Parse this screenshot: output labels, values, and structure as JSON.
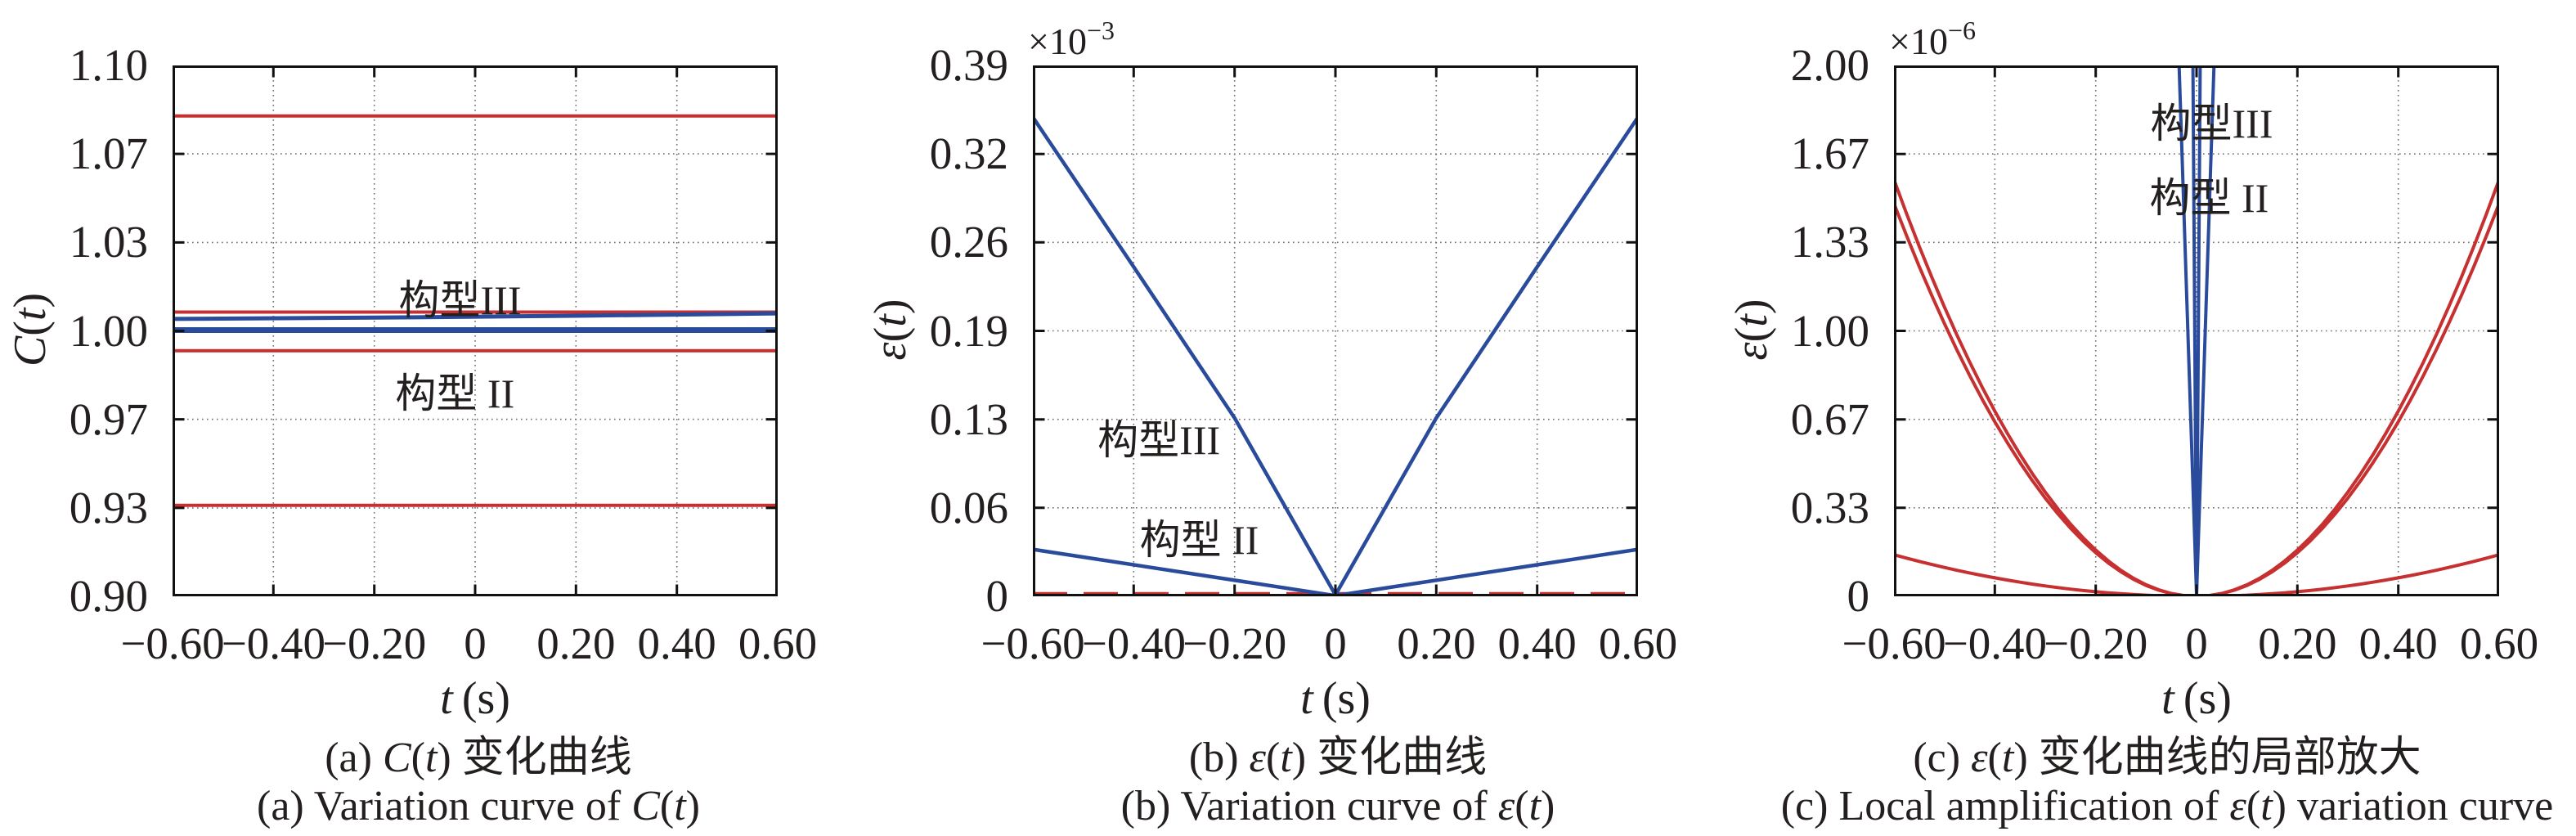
{
  "figure": {
    "background": "#ffffff",
    "text_color": "#241f1f",
    "grid_color": "#6e6e6e",
    "axis_color": "#111111"
  },
  "colors": {
    "red": "#c63030",
    "blue": "#2a4b9c"
  },
  "chart_data": [
    {
      "type": "line",
      "id": "a",
      "xlabel": "t (s)",
      "ylabel": "C(t)",
      "caption_cn": "(a) C(t) 变化曲线",
      "caption_en": "(a) Variation curve of C(t)",
      "xlim": [
        -0.6,
        0.6
      ],
      "ylim": [
        0.9,
        1.1
      ],
      "grid": true,
      "xticks": {
        "values": [
          -0.6,
          -0.4,
          -0.2,
          0,
          0.2,
          0.4,
          0.6
        ],
        "labels": [
          "−0.60",
          "−0.40",
          "−0.20",
          "0",
          "0.20",
          "0.40",
          "0.60"
        ]
      },
      "yticks": {
        "values": [
          0.9,
          0.9333,
          0.9667,
          1.0,
          1.0333,
          1.0667,
          1.1
        ],
        "labels": [
          "0.90",
          "0.93",
          "0.97",
          "1.00",
          "1.03",
          "1.07",
          "1.10"
        ]
      },
      "curves": [
        {
          "name": "red-line-upper",
          "color": "red",
          "width": 4,
          "type": "poly",
          "points": [
            [
              -0.6,
              1.081
            ],
            [
              0.6,
              1.081
            ]
          ]
        },
        {
          "name": "red-line-cluster-top",
          "color": "red",
          "width": 4,
          "type": "poly",
          "points": [
            [
              -0.6,
              1.0071
            ],
            [
              0.6,
              1.0071
            ]
          ]
        },
        {
          "name": "blue-line-rising",
          "color": "blue",
          "width": 5,
          "type": "poly",
          "points": [
            [
              -0.6,
              1.0045
            ],
            [
              -0.2,
              1.005
            ],
            [
              0.2,
              1.0057
            ],
            [
              0.6,
              1.0066
            ]
          ]
        },
        {
          "name": "blue-line-unity",
          "color": "blue",
          "width": 7,
          "type": "poly",
          "points": [
            [
              -0.6,
              1.0003
            ],
            [
              0.6,
              1.0003
            ]
          ]
        },
        {
          "name": "red-line-cluster-bottom",
          "color": "red",
          "width": 4,
          "type": "poly",
          "points": [
            [
              -0.6,
              0.9925
            ],
            [
              0.6,
              0.9925
            ]
          ]
        },
        {
          "name": "red-line-lower",
          "color": "red",
          "width": 4,
          "type": "poly",
          "points": [
            [
              -0.6,
              0.9343
            ],
            [
              0.6,
              0.9343
            ]
          ]
        }
      ],
      "labels": [
        {
          "text": "构型III",
          "x": -0.03,
          "y": 1.0115
        },
        {
          "text": "构型 II",
          "x": -0.04,
          "y": 0.9765
        }
      ]
    },
    {
      "type": "line",
      "id": "b",
      "xlabel": "t (s)",
      "ylabel": "ε(t)",
      "y_offset_base": "×10",
      "y_offset_exp": "−3",
      "caption_cn": "(b) ε(t) 变化曲线",
      "caption_en": "(b) Variation curve of ε(t)",
      "xlim": [
        -0.6,
        0.6
      ],
      "ylim": [
        0,
        0.39
      ],
      "grid": true,
      "xticks": {
        "values": [
          -0.6,
          -0.4,
          -0.2,
          0,
          0.2,
          0.4,
          0.6
        ],
        "labels": [
          "−0.60",
          "−0.40",
          "−0.20",
          "0",
          "0.20",
          "0.40",
          "0.60"
        ]
      },
      "yticks": {
        "values": [
          0,
          0.065,
          0.13,
          0.195,
          0.26,
          0.325,
          0.39
        ],
        "labels": [
          "0",
          "0.06",
          "0.13",
          "0.19",
          "0.26",
          "0.32",
          "0.39"
        ]
      },
      "curves": [
        {
          "name": "red-zero-line",
          "color": "red",
          "width": 4,
          "dash": "42 20",
          "type": "poly",
          "points": [
            [
              -0.6,
              0.002
            ],
            [
              0.6,
              0.002
            ]
          ]
        },
        {
          "name": "blue-V-III",
          "color": "blue",
          "width": 4.5,
          "type": "poly",
          "points": [
            [
              -0.6,
              0.352
            ],
            [
              -0.4,
              0.242
            ],
            [
              -0.2,
              0.131
            ],
            [
              0,
              0.001
            ],
            [
              0.2,
              0.131
            ],
            [
              0.4,
              0.242
            ],
            [
              0.6,
              0.352
            ]
          ]
        },
        {
          "name": "blue-V-II",
          "color": "blue",
          "width": 4.5,
          "type": "poly",
          "points": [
            [
              -0.6,
              0.0345
            ],
            [
              0,
              0.0005
            ],
            [
              0.6,
              0.0345
            ]
          ]
        }
      ],
      "labels": [
        {
          "text": "构型III",
          "x": -0.35,
          "y": 0.115
        },
        {
          "text": "构型 II",
          "x": -0.27,
          "y": 0.0415
        }
      ]
    },
    {
      "type": "line",
      "id": "c",
      "xlabel": "t (s)",
      "ylabel": "ε(t)",
      "y_offset_base": "×10",
      "y_offset_exp": "−6",
      "caption_cn": "(c) ε(t) 变化曲线的局部放大",
      "caption_en": "(c) Local amplification of ε(t) variation curve",
      "xlim": [
        -0.6,
        0.6
      ],
      "ylim": [
        0,
        2.0
      ],
      "grid": true,
      "xticks": {
        "values": [
          -0.6,
          -0.4,
          -0.2,
          0,
          0.2,
          0.4,
          0.6
        ],
        "labels": [
          "−0.60",
          "−0.40",
          "−0.20",
          "0",
          "0.20",
          "0.40",
          "0.60"
        ]
      },
      "yticks": {
        "values": [
          0,
          0.3333,
          0.6667,
          1.0,
          1.3333,
          1.6667,
          2.0
        ],
        "labels": [
          "0",
          "0.33",
          "0.67",
          "1.00",
          "1.33",
          "1.67",
          "2.00"
        ]
      },
      "curves": [
        {
          "name": "red-parabola-outer",
          "color": "red",
          "width": 4,
          "type": "parabola",
          "coeff": 4.36,
          "range": [
            -0.6,
            0.6
          ]
        },
        {
          "name": "red-parabola-inner",
          "color": "red",
          "width": 4,
          "type": "parabola",
          "coeff": 4.11,
          "range": [
            -0.6,
            0.6
          ]
        },
        {
          "name": "red-parabola-shallow",
          "color": "red",
          "width": 4,
          "type": "parabola",
          "coeff": 0.435,
          "range": [
            -0.6,
            0.6
          ]
        },
        {
          "name": "blue-V-III-narrow",
          "color": "blue",
          "width": 4,
          "type": "poly",
          "points": [
            [
              -0.0075,
              2.08
            ],
            [
              0,
              0.005
            ],
            [
              0.0075,
              2.08
            ]
          ]
        },
        {
          "name": "blue-V-II-narrow",
          "color": "blue",
          "width": 4,
          "type": "poly",
          "points": [
            [
              -0.036,
              2.08
            ],
            [
              0,
              0.005
            ],
            [
              0.036,
              2.08
            ]
          ]
        }
      ],
      "labels": [
        {
          "text": "构型III",
          "x": 0.03,
          "y": 1.78
        },
        {
          "text": "构型 II",
          "x": 0.025,
          "y": 1.5
        }
      ]
    }
  ]
}
